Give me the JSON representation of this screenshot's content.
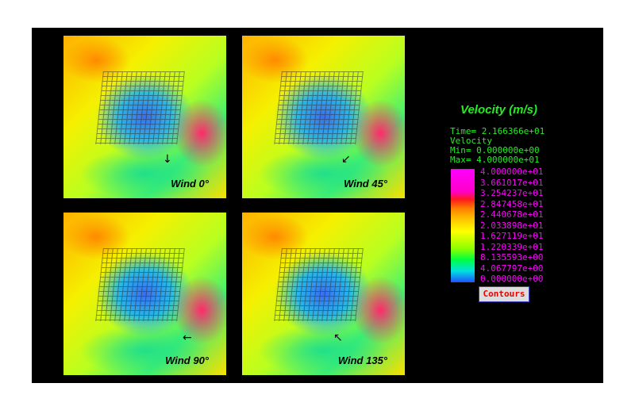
{
  "panels": [
    {
      "label": "Wind 0°",
      "arrow": "↓"
    },
    {
      "label": "Wind 45°",
      "arrow": "↙"
    },
    {
      "label": "Wind 90°",
      "arrow": "←"
    },
    {
      "label": "Wind 135°",
      "arrow": "↖"
    }
  ],
  "legend": {
    "title": "Velocity (m/s)",
    "time": "Time= 2.166366e+01",
    "variable": "Velocity",
    "min": "Min= 0.000000e+00",
    "max": "Max= 4.000000e+01",
    "ticks": [
      "4.000000e+01",
      "3.661017e+01",
      "3.254237e+01",
      "2.847458e+01",
      "2.440678e+01",
      "2.033898e+01",
      "1.627119e+01",
      "1.220339e+01",
      "8.135593e+00",
      "4.067797e+00",
      "0.000000e+00"
    ],
    "colors": [
      "#ff00ff",
      "#ff1a1a",
      "#ff8000",
      "#ffff00",
      "#00ff40",
      "#2050ff"
    ],
    "button": "Contours"
  }
}
